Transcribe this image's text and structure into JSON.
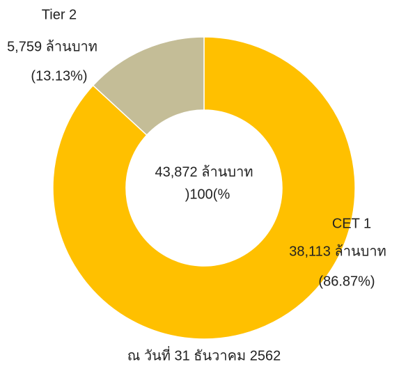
{
  "chart_data": {
    "type": "donut",
    "categories": [
      "CET 1",
      "Tier 2"
    ],
    "values": [
      38113,
      5759
    ],
    "value_labels": [
      "38,113 ล้านบาท",
      "5,759 ล้านบาท"
    ],
    "percents": [
      86.87,
      13.13
    ],
    "percent_labels": [
      "(86.87%)",
      "(13.13%)"
    ],
    "colors": [
      "#FFC000",
      "#C4BD97"
    ],
    "total": 43872,
    "total_label": "43,872 ล้านบาท",
    "total_percent_label": ")100(%",
    "footer": "ณ วันที่ 31 ธันวาคม 2562"
  }
}
